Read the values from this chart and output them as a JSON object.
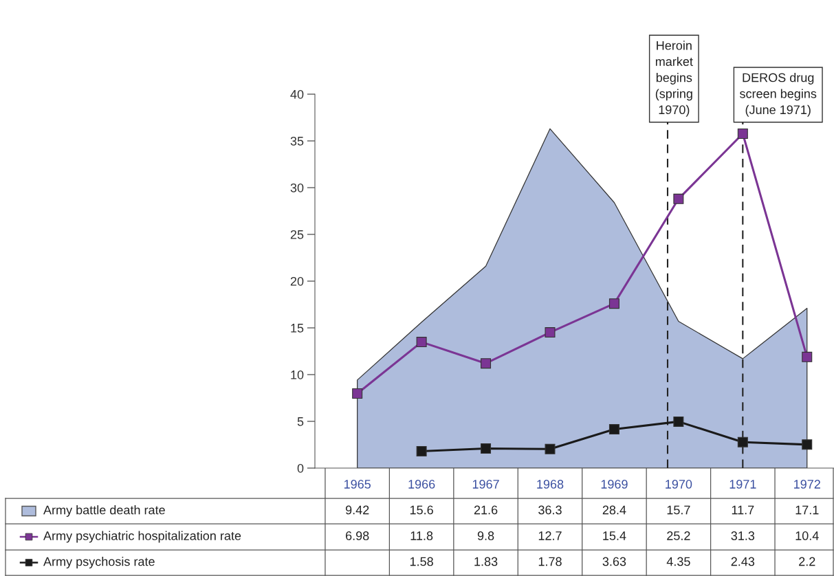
{
  "chart_data": {
    "type": "area",
    "categories": [
      "1965",
      "1966",
      "1967",
      "1968",
      "1969",
      "1970",
      "1971",
      "1972"
    ],
    "ylim": [
      0,
      40
    ],
    "yticks": [
      0,
      5,
      10,
      15,
      20,
      25,
      30,
      35,
      40
    ],
    "y2lim": [
      0,
      35
    ],
    "series": [
      {
        "name": "Army battle death rate",
        "color": "#aebcdc",
        "values": [
          9.42,
          15.6,
          21.6,
          36.3,
          28.4,
          15.7,
          11.7,
          17.1
        ]
      },
      {
        "name": "Army psychiatric hospitalization rate",
        "type": "line",
        "axis": "y2",
        "marker": "square",
        "color": "#7b3594",
        "values": [
          6.98,
          11.8,
          9.8,
          12.7,
          15.4,
          25.2,
          31.3,
          10.4
        ]
      },
      {
        "name": "Army psychosis rate",
        "type": "line",
        "axis": "y2",
        "marker": "square",
        "color": "#1a1a1a",
        "values": [
          null,
          1.58,
          1.83,
          1.78,
          3.63,
          4.35,
          2.43,
          2.2
        ]
      }
    ],
    "data_labels": true,
    "legend": "bottom",
    "ref_lines": [
      {
        "axis": "x",
        "value": "1970",
        "label": "Heroin\nmarket\nbegins\n(spring\n1970)",
        "line_style": "dashed"
      },
      {
        "axis": "x",
        "value": "1971",
        "label": "DEROS drug\nscreen begins\n(June 1971)",
        "line_style": "dashed"
      }
    ]
  }
}
